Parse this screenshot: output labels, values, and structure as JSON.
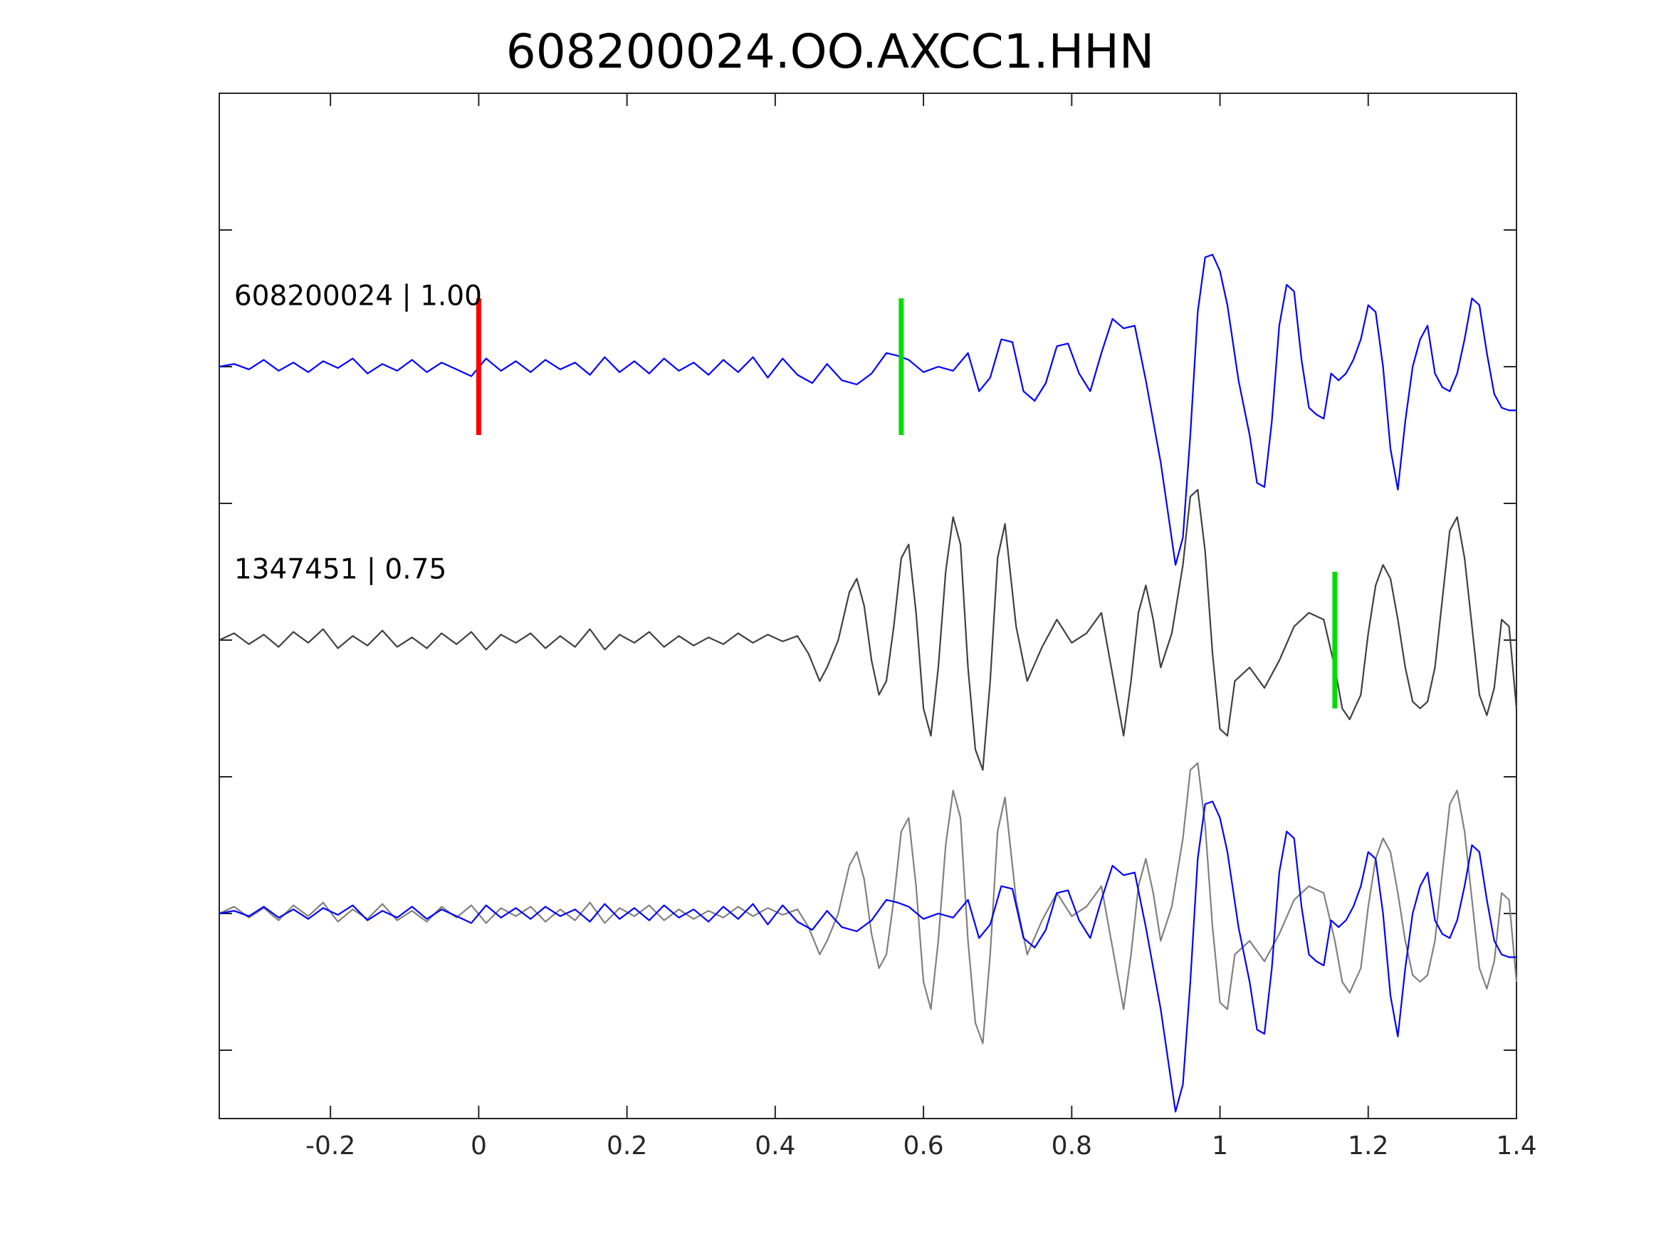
{
  "chart_data": {
    "type": "line",
    "title": "608200024.OO.AXCC1.HHN",
    "xlabel": "",
    "ylabel": "",
    "xlim": [
      -0.35,
      1.4
    ],
    "ylim": [
      -3.5,
      4
    ],
    "grid": false,
    "x_ticks": [
      -0.2,
      0,
      0.2,
      0.4,
      0.6,
      0.8,
      1,
      1.2,
      1.4
    ],
    "x_tick_labels": [
      "-0.2",
      "0",
      "0.2",
      "0.4",
      "0.6",
      "0.8",
      "1",
      "1.2",
      "1.4"
    ],
    "y_ticks": [
      -3,
      -2,
      -1,
      0,
      1,
      2,
      3
    ],
    "colors": {
      "trace_blue": "#0000ff",
      "trace_dark": "#404040",
      "trace_gray": "#808080",
      "pick_red": "#ff0000",
      "pick_green": "#00dd00",
      "axes": "#262626"
    },
    "trace_labels": [
      {
        "text": "608200024 | 1.00",
        "x": -0.33,
        "y": 2.45
      },
      {
        "text": "1347451 | 0.75",
        "x": -0.33,
        "y": 0.45
      }
    ],
    "picks": [
      {
        "name": "red-pick",
        "x": 0,
        "y_min": 1.5,
        "y_max": 2.5,
        "color": "#ff0000"
      },
      {
        "name": "green-pick-top",
        "x": 0.57,
        "y_min": 1.5,
        "y_max": 2.5,
        "color": "#00dd00"
      },
      {
        "name": "green-pick-middle",
        "x": 1.155,
        "y_min": -0.5,
        "y_max": 0.5,
        "color": "#00dd00"
      }
    ],
    "series": [
      {
        "key": "top",
        "color": "#0000ff",
        "x": [
          -0.35,
          -0.33,
          -0.31,
          -0.29,
          -0.27,
          -0.25,
          -0.23,
          -0.21,
          -0.19,
          -0.17,
          -0.15,
          -0.13,
          -0.11,
          -0.09,
          -0.07,
          -0.05,
          -0.03,
          -0.01,
          0.01,
          0.03,
          0.05,
          0.07,
          0.09,
          0.11,
          0.13,
          0.15,
          0.17,
          0.19,
          0.21,
          0.23,
          0.25,
          0.27,
          0.29,
          0.31,
          0.33,
          0.35,
          0.37,
          0.39,
          0.41,
          0.43,
          0.45,
          0.47,
          0.49,
          0.51,
          0.53,
          0.55,
          0.565,
          0.58,
          0.6,
          0.62,
          0.64,
          0.66,
          0.675,
          0.69,
          0.705,
          0.72,
          0.735,
          0.75,
          0.765,
          0.78,
          0.795,
          0.81,
          0.825,
          0.84,
          0.855,
          0.87,
          0.885,
          0.9,
          0.92,
          0.94,
          0.95,
          0.96,
          0.97,
          0.98,
          0.99,
          1.0,
          1.01,
          1.025,
          1.04,
          1.05,
          1.06,
          1.07,
          1.08,
          1.09,
          1.1,
          1.11,
          1.12,
          1.13,
          1.14,
          1.15,
          1.16,
          1.17,
          1.18,
          1.19,
          1.2,
          1.21,
          1.22,
          1.23,
          1.24,
          1.25,
          1.26,
          1.27,
          1.28,
          1.29,
          1.3,
          1.31,
          1.32,
          1.33,
          1.34,
          1.35,
          1.36,
          1.37,
          1.38,
          1.39,
          1.4
        ],
        "y": [
          2.0,
          2.02,
          1.98,
          2.05,
          1.97,
          2.03,
          1.96,
          2.04,
          1.99,
          2.06,
          1.95,
          2.02,
          1.97,
          2.05,
          1.96,
          2.03,
          1.98,
          1.93,
          2.06,
          1.97,
          2.04,
          1.96,
          2.05,
          1.98,
          2.03,
          1.94,
          2.07,
          1.96,
          2.04,
          1.95,
          2.06,
          1.97,
          2.03,
          1.94,
          2.05,
          1.96,
          2.07,
          1.92,
          2.06,
          1.94,
          1.88,
          2.02,
          1.9,
          1.87,
          1.95,
          2.1,
          2.08,
          2.05,
          1.96,
          2.0,
          1.97,
          2.1,
          1.82,
          1.92,
          2.2,
          2.18,
          1.82,
          1.75,
          1.88,
          2.15,
          2.17,
          1.95,
          1.82,
          2.1,
          2.35,
          2.28,
          2.3,
          1.9,
          1.3,
          0.55,
          0.75,
          1.5,
          2.4,
          2.8,
          2.82,
          2.7,
          2.45,
          1.9,
          1.5,
          1.15,
          1.12,
          1.6,
          2.3,
          2.6,
          2.55,
          2.05,
          1.7,
          1.65,
          1.62,
          1.95,
          1.9,
          1.95,
          2.05,
          2.2,
          2.45,
          2.4,
          2.0,
          1.4,
          1.1,
          1.6,
          2.0,
          2.2,
          2.3,
          1.95,
          1.85,
          1.82,
          1.95,
          2.2,
          2.5,
          2.45,
          2.1,
          1.8,
          1.7,
          1.68,
          1.68
        ]
      },
      {
        "key": "middle",
        "color": "#404040",
        "x": [
          -0.35,
          -0.33,
          -0.31,
          -0.29,
          -0.27,
          -0.25,
          -0.23,
          -0.21,
          -0.19,
          -0.17,
          -0.15,
          -0.13,
          -0.11,
          -0.09,
          -0.07,
          -0.05,
          -0.03,
          -0.01,
          0.01,
          0.03,
          0.05,
          0.07,
          0.09,
          0.11,
          0.13,
          0.15,
          0.17,
          0.19,
          0.21,
          0.23,
          0.25,
          0.27,
          0.29,
          0.31,
          0.33,
          0.35,
          0.37,
          0.39,
          0.41,
          0.43,
          0.445,
          0.46,
          0.47,
          0.485,
          0.5,
          0.51,
          0.52,
          0.53,
          0.54,
          0.55,
          0.56,
          0.57,
          0.58,
          0.59,
          0.6,
          0.61,
          0.62,
          0.63,
          0.64,
          0.65,
          0.66,
          0.67,
          0.68,
          0.69,
          0.7,
          0.71,
          0.725,
          0.74,
          0.76,
          0.78,
          0.8,
          0.82,
          0.84,
          0.86,
          0.87,
          0.88,
          0.89,
          0.9,
          0.91,
          0.92,
          0.935,
          0.95,
          0.96,
          0.97,
          0.98,
          0.99,
          1.0,
          1.01,
          1.02,
          1.04,
          1.06,
          1.08,
          1.1,
          1.12,
          1.14,
          1.155,
          1.165,
          1.175,
          1.19,
          1.2,
          1.21,
          1.22,
          1.23,
          1.24,
          1.25,
          1.26,
          1.27,
          1.28,
          1.29,
          1.3,
          1.31,
          1.32,
          1.33,
          1.34,
          1.35,
          1.36,
          1.37,
          1.38,
          1.39,
          1.4
        ],
        "y": [
          0.0,
          0.05,
          -0.03,
          0.04,
          -0.05,
          0.06,
          -0.02,
          0.08,
          -0.06,
          0.03,
          -0.04,
          0.07,
          -0.05,
          0.02,
          -0.06,
          0.05,
          -0.03,
          0.06,
          -0.07,
          0.04,
          -0.02,
          0.05,
          -0.06,
          0.03,
          -0.05,
          0.08,
          -0.07,
          0.04,
          -0.02,
          0.06,
          -0.05,
          0.03,
          -0.04,
          0.02,
          -0.03,
          0.05,
          -0.02,
          0.04,
          -0.01,
          0.03,
          -0.1,
          -0.3,
          -0.2,
          0.0,
          0.35,
          0.45,
          0.25,
          -0.15,
          -0.4,
          -0.3,
          0.1,
          0.6,
          0.7,
          0.2,
          -0.5,
          -0.7,
          -0.2,
          0.5,
          0.9,
          0.7,
          -0.2,
          -0.8,
          -0.95,
          -0.3,
          0.6,
          0.85,
          0.1,
          -0.3,
          -0.05,
          0.15,
          -0.02,
          0.05,
          0.2,
          -0.4,
          -0.7,
          -0.3,
          0.2,
          0.4,
          0.15,
          -0.2,
          0.05,
          0.55,
          1.05,
          1.1,
          0.65,
          -0.1,
          -0.65,
          -0.7,
          -0.3,
          -0.2,
          -0.35,
          -0.15,
          0.1,
          0.2,
          0.15,
          -0.2,
          -0.5,
          -0.58,
          -0.4,
          0.05,
          0.4,
          0.55,
          0.45,
          0.15,
          -0.2,
          -0.45,
          -0.5,
          -0.45,
          -0.2,
          0.3,
          0.8,
          0.9,
          0.6,
          0.1,
          -0.4,
          -0.55,
          -0.35,
          0.15,
          0.1,
          -0.5
        ]
      },
      {
        "key": "bottom-gray",
        "color": "#808080",
        "x_offset": 0,
        "y_shift": -2,
        "ref": "middle"
      },
      {
        "key": "bottom-blue",
        "color": "#0000ff",
        "y_shift": -4,
        "ref": "top"
      }
    ]
  }
}
